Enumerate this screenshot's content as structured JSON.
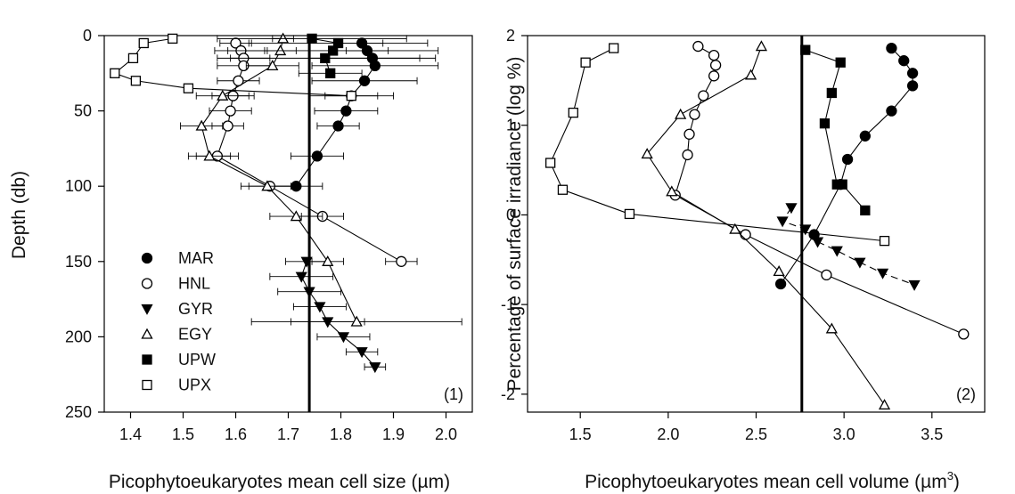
{
  "chart_data": [
    {
      "type": "line",
      "panel_label": "(1)",
      "xlabel": "Picophytoeukaryotes mean cell size (µm)",
      "ylabel": "Depth (db)",
      "xlim": [
        1.35,
        2.05
      ],
      "ylim": [
        0,
        250
      ],
      "y_inverted": true,
      "xticks": [
        "1.4",
        "1.5",
        "1.6",
        "1.7",
        "1.8",
        "1.9",
        "2.0"
      ],
      "yticks": [
        "0",
        "50",
        "100",
        "150",
        "200",
        "250"
      ],
      "vline": 1.74,
      "legend": {
        "position": "lower-left",
        "entries": [
          "MAR",
          "HNL",
          "GYR",
          "EGY",
          "UPW",
          "UPX"
        ]
      },
      "series": [
        {
          "name": "MAR",
          "marker": "circle-filled",
          "points": [
            [
              1.84,
              5
            ],
            [
              1.85,
              10
            ],
            [
              1.86,
              15
            ],
            [
              1.865,
              20
            ],
            [
              1.845,
              30
            ],
            [
              1.82,
              40
            ],
            [
              1.81,
              50
            ],
            [
              1.795,
              60
            ],
            [
              1.755,
              80
            ],
            [
              1.715,
              100
            ]
          ],
          "err": [
            0.04,
            0.04,
            0.12,
            0.12,
            0.1,
            0.05,
            0.06,
            0.04,
            0.05,
            0.05
          ]
        },
        {
          "name": "HNL",
          "marker": "circle-open",
          "points": [
            [
              1.6,
              5
            ],
            [
              1.61,
              10
            ],
            [
              1.615,
              15
            ],
            [
              1.615,
              20
            ],
            [
              1.605,
              30
            ],
            [
              1.595,
              40
            ],
            [
              1.59,
              50
            ],
            [
              1.585,
              60
            ],
            [
              1.565,
              80
            ],
            [
              1.665,
              100
            ],
            [
              1.765,
              120
            ],
            [
              1.915,
              150
            ]
          ],
          "err": [
            0.03,
            0.05,
            0.05,
            0.05,
            0.04,
            0.04,
            0.04,
            0.03,
            0.04,
            0.04,
            0.04,
            0.03
          ]
        },
        {
          "name": "GYR",
          "marker": "triangle-down-filled",
          "points": [
            [
              1.735,
              150
            ],
            [
              1.725,
              160
            ],
            [
              1.74,
              170
            ],
            [
              1.76,
              180
            ],
            [
              1.775,
              190
            ],
            [
              1.805,
              200
            ],
            [
              1.84,
              210
            ],
            [
              1.865,
              220
            ]
          ],
          "err": [
            0.04,
            0.06,
            0.06,
            0.05,
            0.07,
            0.05,
            0.03,
            0.02
          ]
        },
        {
          "name": "EGY",
          "marker": "triangle-up-open",
          "points": [
            [
              1.69,
              2
            ],
            [
              1.685,
              10
            ],
            [
              1.67,
              20
            ],
            [
              1.575,
              40
            ],
            [
              1.535,
              60
            ],
            [
              1.55,
              80
            ],
            [
              1.66,
              100
            ],
            [
              1.715,
              120
            ],
            [
              1.775,
              150
            ],
            [
              1.83,
              190
            ]
          ],
          "err": [
            0.02,
            0.03,
            0.05,
            0.05,
            0.04,
            0.04,
            0.05,
            0.05,
            0.03,
            0.2
          ]
        },
        {
          "name": "UPW",
          "marker": "square-filled",
          "points": [
            [
              1.745,
              2
            ],
            [
              1.795,
              5
            ],
            [
              1.785,
              10
            ],
            [
              1.77,
              15
            ],
            [
              1.78,
              25
            ]
          ],
          "err": [
            0.18,
            0.17,
            0.2,
            0.18,
            0.06
          ]
        },
        {
          "name": "UPX",
          "marker": "square-open",
          "points": [
            [
              1.48,
              2
            ],
            [
              1.425,
              5
            ],
            [
              1.405,
              15
            ],
            [
              1.37,
              25
            ],
            [
              1.41,
              30
            ],
            [
              1.51,
              35
            ],
            [
              1.82,
              40
            ]
          ],
          "err": [
            0,
            0,
            0,
            0,
            0,
            0,
            0.08
          ]
        }
      ]
    },
    {
      "type": "line",
      "panel_label": "(2)",
      "xlabel": "Picophytoeukaryotes mean cell volume (µm",
      "xlabel_sup": "3",
      "xlabel_end": ")",
      "ylabel": "Percentage of surface irradiance (log %)",
      "xlim": [
        1.2,
        3.8
      ],
      "ylim": [
        -2.2,
        2.0
      ],
      "xticks": [
        "1.5",
        "2.0",
        "2.5",
        "3.0",
        "3.5"
      ],
      "yticks": [
        "2",
        "1",
        "0",
        "-1",
        "-2"
      ],
      "vline": 2.76,
      "series": [
        {
          "name": "MAR",
          "marker": "circle-filled",
          "points": [
            [
              3.27,
              1.86
            ],
            [
              3.34,
              1.72
            ],
            [
              3.39,
              1.58
            ],
            [
              3.39,
              1.44
            ],
            [
              3.27,
              1.16
            ],
            [
              3.12,
              0.88
            ],
            [
              3.02,
              0.62
            ],
            [
              2.98,
              0.34
            ],
            [
              2.83,
              -0.22
            ],
            [
              2.64,
              -0.77
            ]
          ]
        },
        {
          "name": "HNL",
          "marker": "circle-open",
          "points": [
            [
              2.17,
              1.88
            ],
            [
              2.26,
              1.78
            ],
            [
              2.27,
              1.67
            ],
            [
              2.26,
              1.55
            ],
            [
              2.2,
              1.33
            ],
            [
              2.15,
              1.12
            ],
            [
              2.12,
              0.9
            ],
            [
              2.11,
              0.67
            ],
            [
              2.04,
              0.22
            ],
            [
              2.44,
              -0.22
            ],
            [
              2.9,
              -0.67
            ],
            [
              3.68,
              -1.33
            ]
          ]
        },
        {
          "name": "GYR",
          "marker": "triangle-down-filled",
          "points": [
            [
              2.7,
              0.08
            ],
            [
              2.65,
              -0.07
            ],
            [
              2.78,
              -0.16
            ],
            [
              2.85,
              -0.3
            ],
            [
              2.96,
              -0.4
            ],
            [
              3.09,
              -0.53
            ],
            [
              3.22,
              -0.65
            ],
            [
              3.4,
              -0.78
            ]
          ]
        },
        {
          "name": "EGY",
          "marker": "triangle-up-open",
          "points": [
            [
              2.53,
              1.88
            ],
            [
              2.47,
              1.56
            ],
            [
              2.07,
              1.12
            ],
            [
              1.88,
              0.68
            ],
            [
              2.02,
              0.26
            ],
            [
              2.38,
              -0.16
            ],
            [
              2.63,
              -0.63
            ],
            [
              2.93,
              -1.27
            ],
            [
              3.23,
              -2.12
            ]
          ]
        },
        {
          "name": "UPW",
          "marker": "square-filled",
          "points": [
            [
              2.78,
              1.84
            ],
            [
              2.98,
              1.7
            ],
            [
              2.93,
              1.36
            ],
            [
              2.89,
              1.02
            ],
            [
              2.96,
              0.34
            ],
            [
              2.99,
              0.34
            ],
            [
              3.12,
              0.05
            ]
          ]
        },
        {
          "name": "UPX",
          "marker": "square-open",
          "points": [
            [
              1.69,
              1.86
            ],
            [
              1.53,
              1.7
            ],
            [
              1.46,
              1.14
            ],
            [
              1.33,
              0.58
            ],
            [
              1.4,
              0.28
            ],
            [
              1.78,
              0.01
            ],
            [
              3.23,
              -0.29
            ]
          ]
        }
      ]
    }
  ]
}
